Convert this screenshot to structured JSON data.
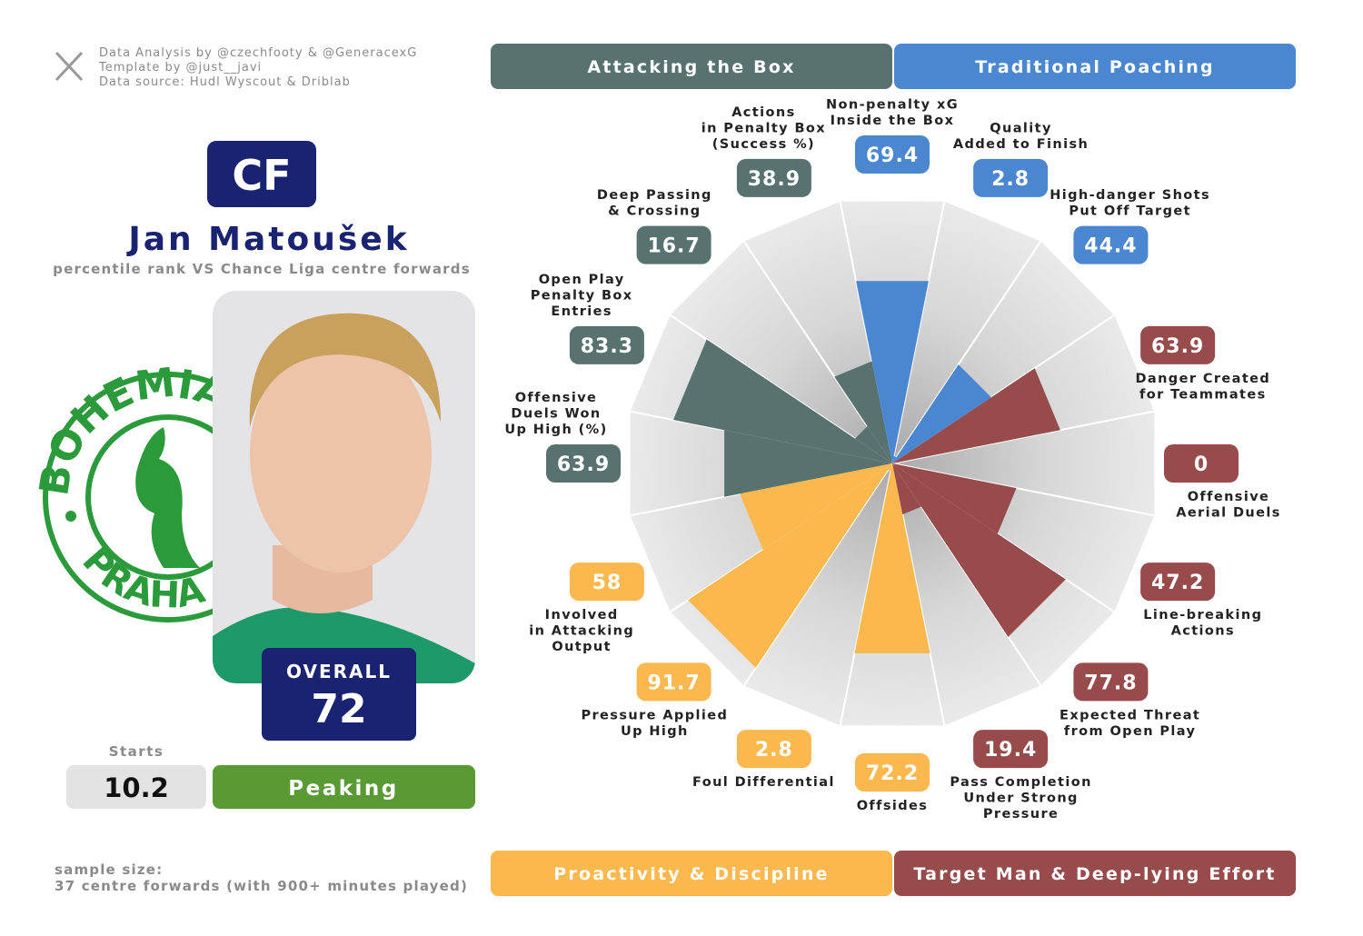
{
  "credits": [
    "Data Analysis by @czechfooty & @GeneracexG",
    "Template by @just__javi",
    "Data source: Hudl Wyscout & Driblab"
  ],
  "player": {
    "position": "CF",
    "name": "Jan Matoušek",
    "subtitle": "percentile rank VS Chance Liga centre forwards",
    "club_logo": [
      "BOHEMIANS",
      "PRAHA"
    ],
    "overall_label": "OVERALL",
    "overall": 72,
    "starts_label": "Starts",
    "starts": 10.2,
    "status": "Peaking"
  },
  "sample_size": [
    "sample size:",
    "37 centre forwards (with 900+ minutes played)"
  ],
  "chart_data": {
    "type": "polar-bar",
    "ylim": [
      0,
      100
    ],
    "series": [
      {
        "name": "Attacking the Box",
        "color": "#587270",
        "categories": [
          "Offensive\nDuels Won\nUp High (%)",
          "Open Play\nPenalty Box\nEntries",
          "Deep Passing\n& Crossing",
          "Actions\nin Penalty Box\n(Success %)"
        ],
        "values": [
          63.9,
          83.3,
          16.7,
          38.9
        ]
      },
      {
        "name": "Traditional Poaching",
        "color": "#4a87d0",
        "categories": [
          "Non-penalty xG\nInside the Box",
          "Quality\nAdded to Finish",
          "High-danger Shots\nPut Off Target"
        ],
        "values": [
          69.4,
          2.8,
          44.4
        ]
      },
      {
        "name": "Target Man & Deep-lying Effort",
        "color": "#974b4b",
        "categories": [
          "Danger Created\nfor Teammates",
          "Offensive\nAerial Duels",
          "Line-breaking\nActions",
          "Expected Threat\nfrom Open Play",
          "Pass Completion\nUnder Strong\nPressure"
        ],
        "values": [
          63.9,
          0,
          47.2,
          77.8,
          19.4
        ]
      },
      {
        "name": "Proactivity & Discipline",
        "color": "#fbb84e",
        "categories": [
          "Offsides",
          "Foul Differential",
          "Pressure Applied\nUp High",
          "Involved\nin Attacking\nOutput"
        ],
        "values": [
          72.2,
          2.8,
          91.7,
          58
        ]
      }
    ]
  }
}
